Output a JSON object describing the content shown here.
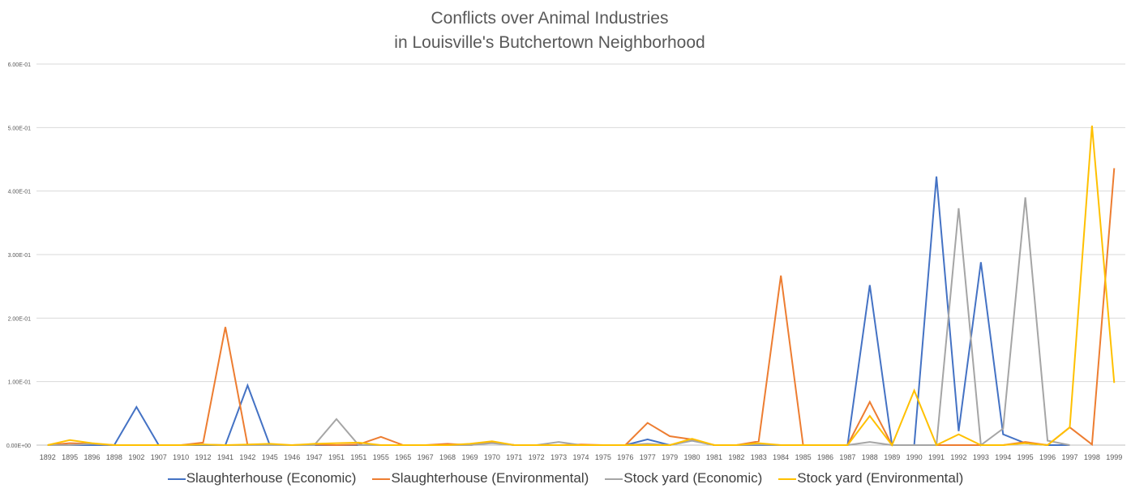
{
  "chart_data": {
    "type": "line",
    "title": "Conflicts over Animal Industries",
    "subtitle": "in Louisville's Butchertown Neighborhood",
    "xlabel": "",
    "ylabel": "",
    "ylim": [
      0,
      0.6
    ],
    "yticks": [
      "0.00E+00",
      "1.00E-01",
      "2.00E-01",
      "3.00E-01",
      "4.00E-01",
      "5.00E-01",
      "6.00E-01"
    ],
    "grid": true,
    "legend_position": "bottom",
    "categories": [
      "1892",
      "1895",
      "1896",
      "1898",
      "1902",
      "1907",
      "1910",
      "1912",
      "1941",
      "1942",
      "1945",
      "1946",
      "1947",
      "1951",
      "1951",
      "1955",
      "1965",
      "1967",
      "1968",
      "1969",
      "1970",
      "1971",
      "1972",
      "1973",
      "1974",
      "1975",
      "1976",
      "1977",
      "1979",
      "1980",
      "1981",
      "1982",
      "1983",
      "1984",
      "1985",
      "1986",
      "1987",
      "1988",
      "1989",
      "1990",
      "1991",
      "1992",
      "1993",
      "1994",
      "1995",
      "1996",
      "1997",
      "1998",
      "1999"
    ],
    "series": [
      {
        "name": "Slaughterhouse (Economic)",
        "color": "#4472C4",
        "values": [
          0,
          0,
          0,
          0,
          0.06,
          0,
          0,
          0,
          0,
          0.094,
          0,
          0,
          0,
          0,
          0,
          0,
          0,
          0,
          0,
          0,
          0.005,
          0,
          0,
          0,
          0,
          0,
          0,
          0.009,
          0,
          0.007,
          0,
          0,
          0,
          0,
          0,
          0,
          0,
          0.252,
          0,
          0,
          0.423,
          0.022,
          0.288,
          0.017,
          0.003,
          0,
          0,
          null,
          null
        ]
      },
      {
        "name": "Slaughterhouse (Environmental)",
        "color": "#ED7D31",
        "values": [
          0,
          0.003,
          0.002,
          0,
          0,
          0,
          0,
          0.004,
          0.186,
          0,
          0,
          0,
          0.001,
          0,
          0.001,
          0.013,
          0,
          0,
          0.002,
          0,
          0.004,
          0,
          0,
          0,
          0.001,
          0,
          0,
          0.035,
          0.014,
          0.009,
          0,
          0,
          0.006,
          0.267,
          0,
          0,
          0,
          0.068,
          0,
          0,
          0,
          0,
          0,
          0,
          0.005,
          0,
          0.028,
          0.001,
          0.436
        ]
      },
      {
        "name": "Stock yard (Economic)",
        "color": "#A5A5A5",
        "values": [
          0,
          0,
          0.002,
          0,
          0,
          0,
          0,
          0.001,
          0,
          0,
          0,
          0,
          0,
          0.041,
          0,
          0,
          0,
          0,
          0,
          0,
          0.003,
          0,
          0,
          0.005,
          0,
          0,
          0,
          0.002,
          0,
          0.007,
          0,
          0,
          0.001,
          0,
          0,
          0,
          0,
          0.005,
          0,
          0,
          0,
          0.373,
          0,
          0.026,
          0.39,
          0.007,
          0,
          null,
          null
        ]
      },
      {
        "name": "Stock yard (Environmental)",
        "color": "#FFC000",
        "values": [
          0,
          0.008,
          0.003,
          0,
          0,
          0,
          0,
          0.001,
          0,
          0.001,
          0.002,
          0,
          0.002,
          0.003,
          0.004,
          0,
          0,
          0,
          0,
          0.002,
          0.006,
          0,
          0,
          0,
          0,
          0,
          0,
          0,
          0,
          0.01,
          0,
          0,
          0.003,
          0,
          0,
          0,
          0,
          0.046,
          0,
          0.086,
          0,
          0.017,
          0,
          0,
          0.003,
          0,
          0.028,
          0.503,
          0.098
        ]
      }
    ]
  }
}
